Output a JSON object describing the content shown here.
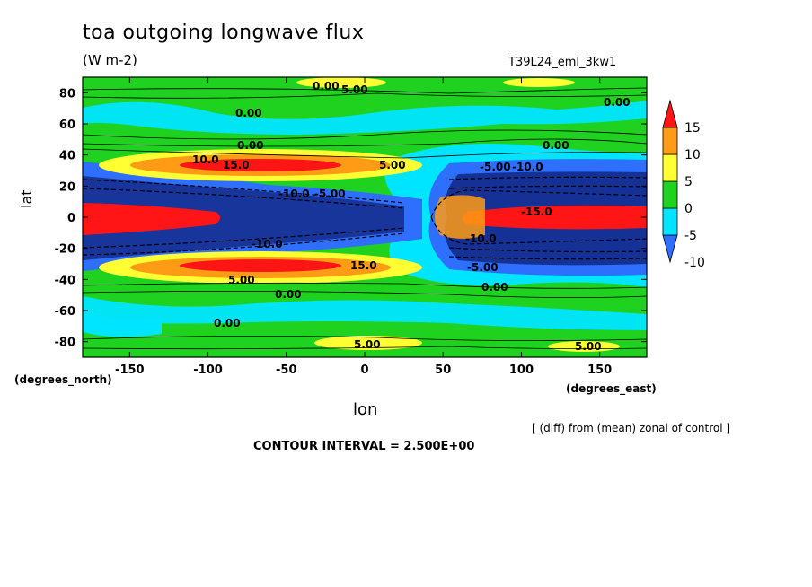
{
  "chart_data": {
    "type": "heatmap",
    "title": "toa outgoing longwave flux",
    "units": "(W m-2)",
    "run_id": "T39L24_eml_3kw1",
    "xlabel": "lon",
    "ylabel": "lat",
    "x_units": "(degrees_east)",
    "y_units": "(degrees_north)",
    "xlim": [
      -180,
      180
    ],
    "ylim": [
      -90,
      90
    ],
    "x_ticks": [
      "-150",
      "-100",
      "-50",
      "0",
      "50",
      "100",
      "150"
    ],
    "y_ticks": [
      "80",
      "60",
      "40",
      "20",
      "0",
      "-20",
      "-40",
      "-60",
      "-80"
    ],
    "colorbar": {
      "labels": [
        "15",
        "10",
        "5",
        "0",
        "-5",
        "-10"
      ],
      "levels": [
        -15,
        -10,
        -5,
        0,
        5,
        10,
        15
      ],
      "colors": [
        "#2f6fff",
        "#00e5ff",
        "#1fd21f",
        "#ffff33",
        "#ff9b14",
        "#ff1515"
      ]
    },
    "contour_labels": [
      "0.00",
      "5.00",
      "10.0",
      "15.0",
      "-5.00",
      "-10.0",
      "-15.0"
    ],
    "contour_interval_text": "CONTOUR INTERVAL = 2.500E+00",
    "note": "[ (diff) from (mean) zonal of control ]",
    "features": [
      {
        "lon": -110,
        "lat": 0,
        "value": 15
      },
      {
        "lon": 125,
        "lat": 0,
        "value": 15
      },
      {
        "lon": -50,
        "lat": 28,
        "value": 12
      },
      {
        "lon": -50,
        "lat": -28,
        "value": 12
      },
      {
        "lon": -60,
        "lat": 12,
        "value": -12
      },
      {
        "lon": -60,
        "lat": -12,
        "value": -12
      },
      {
        "lon": 120,
        "lat": 15,
        "value": -12
      },
      {
        "lon": 120,
        "lat": -15,
        "value": -12
      }
    ]
  }
}
